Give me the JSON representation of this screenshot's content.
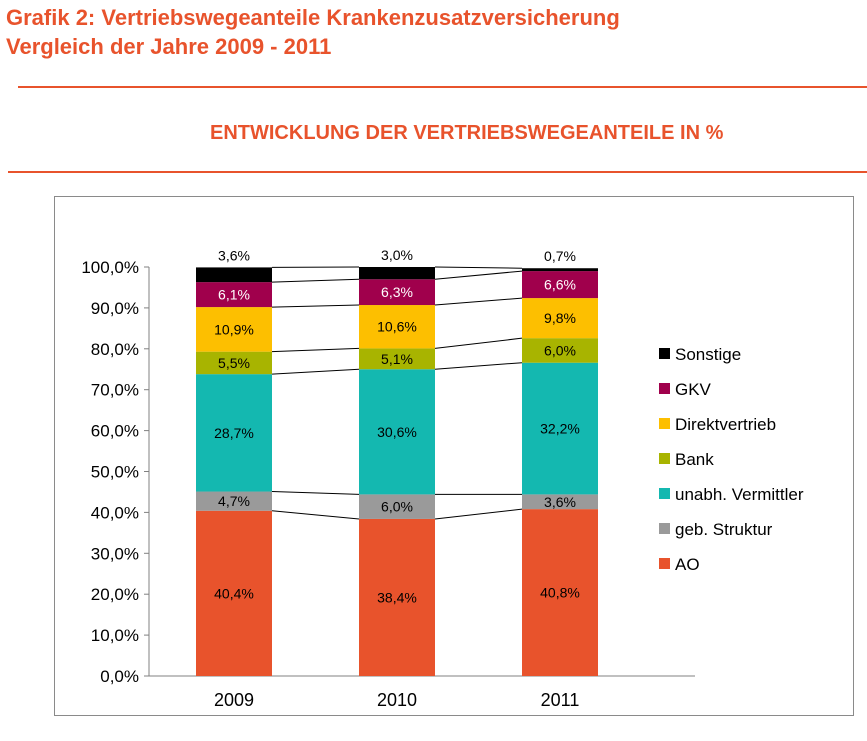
{
  "header": {
    "title_line_1": "Grafik 2: Vertriebswegeanteile Krankenzusatzversicherung",
    "title_line_2": "Vergleich der Jahre 2009 - 2011",
    "chart_heading": "ENTWICKLUNG DER VERTRIEBSWEGEANTEILE IN %"
  },
  "colors": {
    "accent": "#e8532c",
    "rule": "#e8532c"
  },
  "chart_data": {
    "type": "bar",
    "stacked": true,
    "title": "ENTWICKLUNG DER VERTRIEBSWEGEANTEILE IN %",
    "categories": [
      "2009",
      "2010",
      "2011"
    ],
    "ylim": [
      0,
      100
    ],
    "yticks": [
      "0,0%",
      "10,0%",
      "20,0%",
      "30,0%",
      "40,0%",
      "50,0%",
      "60,0%",
      "70,0%",
      "80,0%",
      "90,0%",
      "100,0%"
    ],
    "grid": false,
    "legend_position": "right",
    "series": [
      {
        "name": "AO",
        "color": "#e8532c",
        "values": [
          40.4,
          38.4,
          40.8
        ],
        "labels": [
          "40,4%",
          "38,4%",
          "40,8%"
        ]
      },
      {
        "name": "geb. Struktur",
        "color": "#9a9a9a",
        "values": [
          4.7,
          6.0,
          3.6
        ],
        "labels": [
          "4,7%",
          "6,0%",
          "3,6%"
        ]
      },
      {
        "name": "unabh. Vermittler",
        "color": "#14b8b0",
        "values": [
          28.7,
          30.6,
          32.2
        ],
        "labels": [
          "28,7%",
          "30,6%",
          "32,2%"
        ]
      },
      {
        "name": "Bank",
        "color": "#a8b400",
        "values": [
          5.5,
          5.1,
          6.0
        ],
        "labels": [
          "5,5%",
          "5,1%",
          "6,0%"
        ]
      },
      {
        "name": "Direktvertrieb",
        "color": "#fdbf00",
        "values": [
          10.9,
          10.6,
          9.8
        ],
        "labels": [
          "10,9%",
          "10,6%",
          "9,8%"
        ]
      },
      {
        "name": "GKV",
        "color": "#a0004c",
        "values": [
          6.1,
          6.3,
          6.6
        ],
        "labels": [
          "6,1%",
          "6,3%",
          "6,6%"
        ]
      },
      {
        "name": "Sonstige",
        "color": "#000000",
        "values": [
          3.6,
          3.0,
          0.7
        ],
        "labels": [
          "3,6%",
          "3,0%",
          "0,7%"
        ]
      }
    ],
    "legend_order": [
      "Sonstige",
      "GKV",
      "Direktvertrieb",
      "Bank",
      "unabh. Vermittler",
      "geb. Struktur",
      "AO"
    ]
  }
}
